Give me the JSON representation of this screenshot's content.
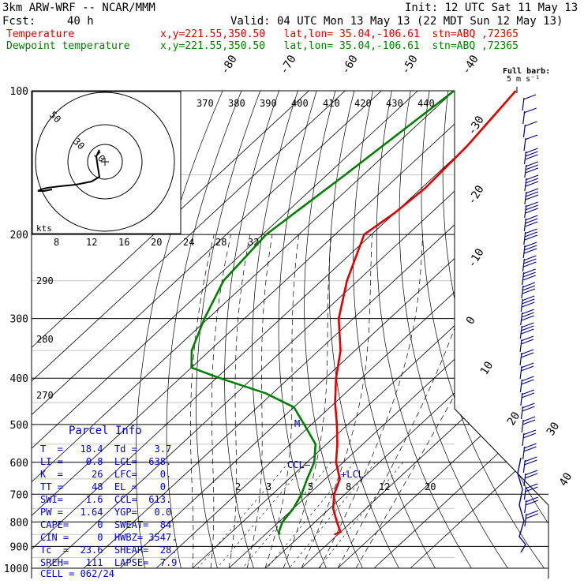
{
  "header": {
    "model": "3km ARW-WRF -- NCAR/MMM",
    "init": "Init: 12 UTC Sat 11 May 13",
    "fcst_label": "Fcst:",
    "fcst_value": "40 h",
    "valid": "Valid: 04 UTC Mon 13 May 13 (22 MDT Sun 12 May 13)",
    "temp_label": "Temperature",
    "temp_loc": "x,y=221.55,350.50   lat,lon= 35.04,-106.61  stn=ABQ ,72365",
    "dew_label": "Dewpoint temperature",
    "dew_loc": "x,y=221.55,350.50   lat,lon= 35.04,-106.61  stn=ABQ ,72365"
  },
  "colors": {
    "temperature": "#e00000",
    "dewpoint": "#008000",
    "annotation": "#0000cc",
    "grid": "#000000"
  },
  "parcel_info": {
    "title": "Parcel Info",
    "rows": [
      "T  =   18.4  Td =   3.7",
      "LI =    0.8  LCL=  638.",
      "K  =     26  LFC=    0.",
      "TT =     48  EL =    0.",
      "SWI=    1.6  CCL=  613.",
      "PW =   1.64  YGP=   0.0",
      "CAPE=     0  SWEAT=  84",
      "CIN =     0  HWBZ= 3547.",
      "Tc  =  23.6  SHEAR=  28.",
      "SREH=   111  LAPSE=  7.9",
      "CELL = 062/24"
    ]
  },
  "barb_legend": {
    "title": "Full barb:",
    "subtitle": "5 m s⁻¹"
  },
  "hodograph": {
    "units_label": "kts",
    "ring_labels": [
      "10",
      "30",
      "50"
    ]
  },
  "chart_data": {
    "type": "line",
    "pressure_levels": [
      "100",
      "200",
      "300",
      "400",
      "500",
      "600",
      "700",
      "800",
      "900",
      "1000"
    ],
    "temp_isotherm_labels": [
      "-80",
      "-70",
      "-60",
      "-50",
      "-40",
      "-30",
      "-20",
      "-10",
      "0",
      "10",
      "20",
      "30",
      "40"
    ],
    "theta_labels": [
      "370",
      "380",
      "390",
      "400",
      "410",
      "420",
      "430",
      "440"
    ],
    "mixing_ratio_labels_top": [
      "8",
      "12",
      "16",
      "20",
      "24",
      "28",
      "32"
    ],
    "mixing_ratio_labels_low": [
      "2",
      "3",
      "5",
      "8",
      "12",
      "20"
    ],
    "theta_labels_left": [
      "290",
      "280",
      "270"
    ],
    "annotations": [
      "CCL",
      "LCL",
      "M"
    ],
    "series": [
      {
        "name": "Temperature",
        "points": [
          [
            100,
            -63
          ],
          [
            130,
            -60
          ],
          [
            160,
            -59
          ],
          [
            180,
            -60
          ],
          [
            200,
            -62
          ],
          [
            250,
            -53
          ],
          [
            300,
            -44
          ],
          [
            350,
            -34
          ],
          [
            400,
            -27
          ],
          [
            450,
            -20
          ],
          [
            500,
            -13
          ],
          [
            550,
            -7
          ],
          [
            600,
            -2
          ],
          [
            650,
            4
          ],
          [
            700,
            7
          ],
          [
            750,
            11
          ],
          [
            800,
            16
          ],
          [
            840,
            20
          ],
          [
            850,
            19
          ]
        ]
      },
      {
        "name": "Dewpoint temperature",
        "points": [
          [
            100,
            -80
          ],
          [
            150,
            -85
          ],
          [
            200,
            -89
          ],
          [
            250,
            -87
          ],
          [
            300,
            -81
          ],
          [
            350,
            -75
          ],
          [
            380,
            -70
          ],
          [
            400,
            -59
          ],
          [
            430,
            -42
          ],
          [
            460,
            -30
          ],
          [
            500,
            -22
          ],
          [
            550,
            -13
          ],
          [
            600,
            -8
          ],
          [
            650,
            -5
          ],
          [
            700,
            -2
          ],
          [
            750,
            0
          ],
          [
            800,
            1
          ],
          [
            840,
            3
          ],
          [
            850,
            4
          ]
        ]
      }
    ]
  }
}
